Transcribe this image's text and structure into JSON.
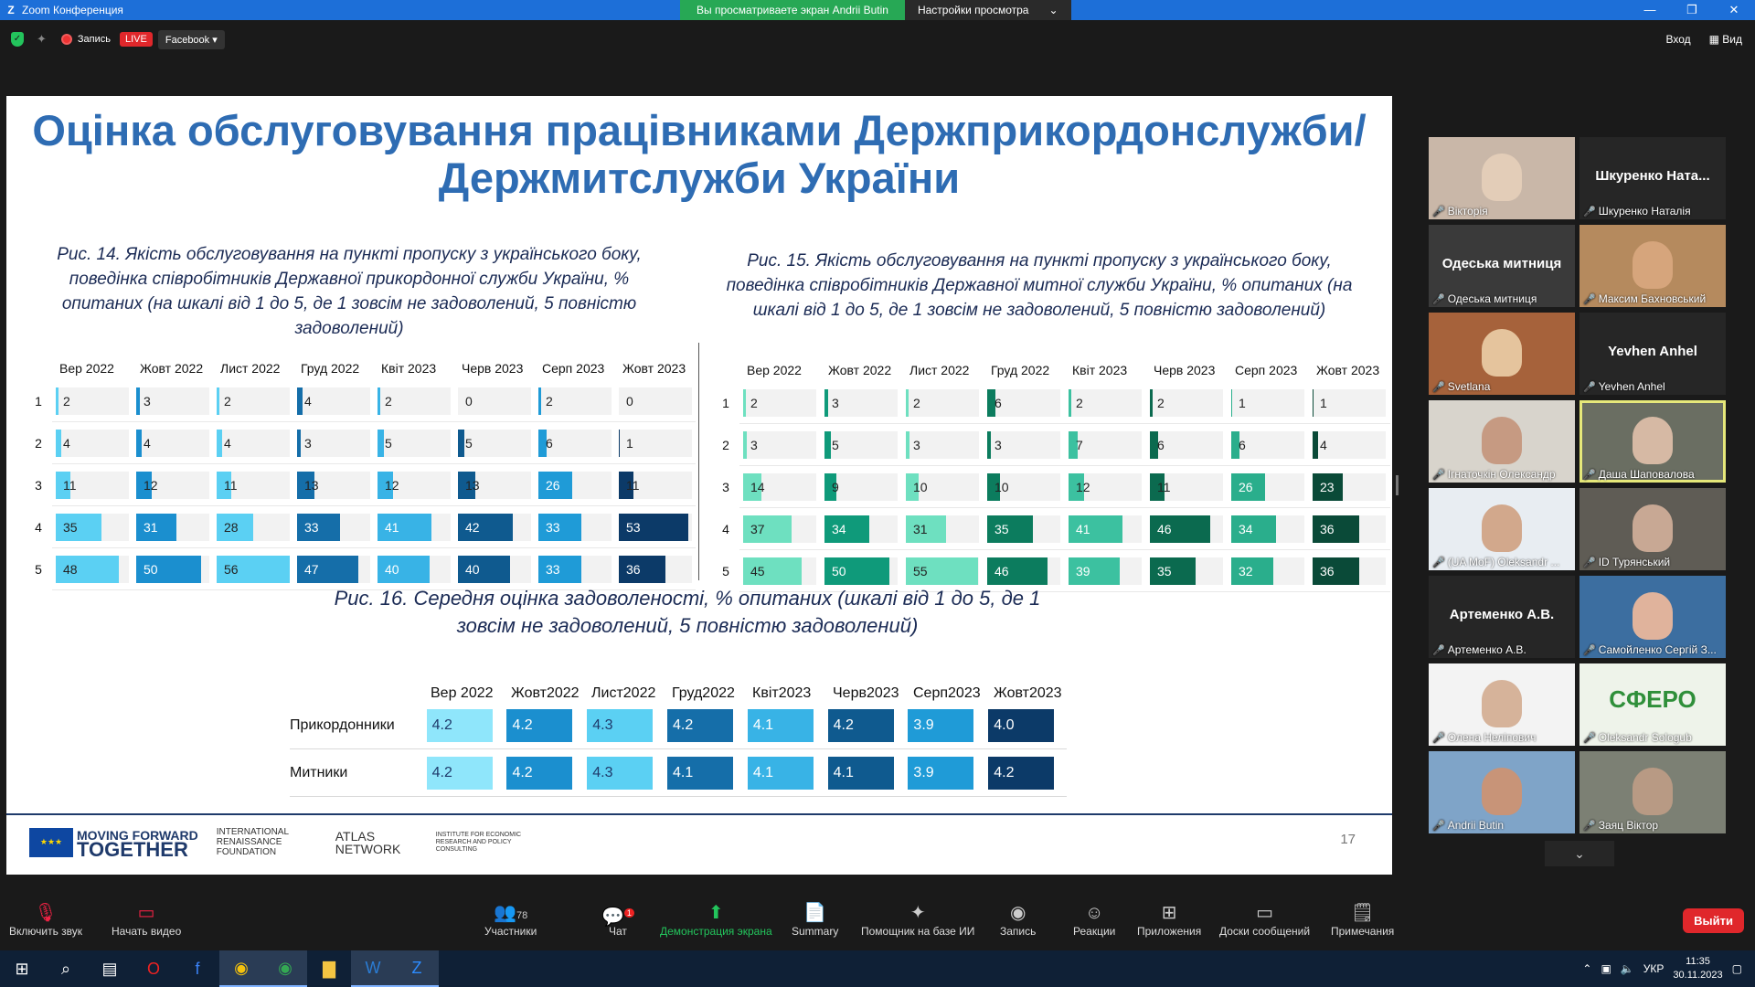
{
  "window": {
    "title": "Zoom Конференция",
    "share_banner": "Вы просматриваете экран Andrii Butin",
    "view_settings": "Настройки просмотра",
    "minimize": "—",
    "maximize": "❐",
    "close": "✕"
  },
  "topbar": {
    "record_label": "Запись",
    "live": "LIVE",
    "platform": "Facebook ▾",
    "enter": "Вход",
    "view": "Вид"
  },
  "slide": {
    "title": "Оцінка обслуговування працівниками Держприкордонслужби/Держмитслужби України",
    "cap14": "Рис. 14. Якість обслуговування на пункті пропуску з українського боку, поведінка співробітників Державної прикордонної служби України, % опитаних (на шкалі від 1 до 5, де 1 зовсім не задоволений, 5 повністю задоволений)",
    "cap15": "Рис. 15. Якість обслуговування на пункті пропуску з українського боку, поведінка співробітників Державної митної служби України, % опитаних (на шкалі від 1 до 5, де 1 зовсім не задоволений, 5 повністю задоволений)",
    "cap16": "Рис. 16. Середня оцінка задоволеності, % опитаних (шкалі від 1 до 5, де 1 зовсім не задоволений, 5 повністю задоволений)",
    "page_number": "17",
    "logos": {
      "eu_line1": "MOVING FORWARD",
      "eu_line2": "TOGETHER",
      "irf": "INTERNATIONAL RENAISSANCE FOUNDATION",
      "atlas": "ATLAS NETWORK",
      "ier": "INSTITUTE FOR ECONOMIC RESEARCH AND POLICY CONSULTING"
    }
  },
  "chart_data": [
    {
      "type": "table",
      "name": "fig14",
      "categories": [
        "Вер 2022",
        "Жовт 2022",
        "Лист 2022",
        "Груд 2022",
        "Квіт 2023",
        "Черв 2023",
        "Серп 2023",
        "Жовт 2023"
      ],
      "rows": [
        "1",
        "2",
        "3",
        "4",
        "5"
      ],
      "values": [
        [
          2,
          3,
          2,
          4,
          2,
          0,
          2,
          0
        ],
        [
          4,
          4,
          4,
          3,
          5,
          5,
          6,
          1
        ],
        [
          11,
          12,
          11,
          13,
          12,
          13,
          26,
          11
        ],
        [
          35,
          31,
          28,
          33,
          41,
          42,
          33,
          53
        ],
        [
          48,
          50,
          56,
          47,
          40,
          40,
          33,
          36
        ]
      ],
      "colors": [
        "#5bd0f3",
        "#1b8fcf",
        "#5bd0f3",
        "#156ea9",
        "#38b3e6",
        "#0f5a8f",
        "#1f9bd7",
        "#0c3a68"
      ]
    },
    {
      "type": "table",
      "name": "fig15",
      "categories": [
        "Вер 2022",
        "Жовт 2022",
        "Лист 2022",
        "Груд 2022",
        "Квіт 2023",
        "Черв 2023",
        "Серп 2023",
        "Жовт 2023"
      ],
      "rows": [
        "1",
        "2",
        "3",
        "4",
        "5"
      ],
      "values": [
        [
          2,
          3,
          2,
          6,
          2,
          2,
          1,
          1
        ],
        [
          3,
          5,
          3,
          3,
          7,
          6,
          6,
          4
        ],
        [
          14,
          9,
          10,
          10,
          12,
          11,
          26,
          23
        ],
        [
          37,
          34,
          31,
          35,
          41,
          46,
          34,
          36
        ],
        [
          45,
          50,
          55,
          46,
          39,
          35,
          32,
          36
        ]
      ],
      "colors": [
        "#6ee0c0",
        "#0f9a7a",
        "#6ee0c0",
        "#0c7c5e",
        "#3cc1a0",
        "#0b6a4f",
        "#2aae8c",
        "#0a4a38"
      ]
    },
    {
      "type": "table",
      "name": "fig16",
      "categories": [
        "Вер 2022",
        "Жовт 2022",
        "Лист 2022",
        "Груд 2022",
        "Квіт 2023",
        "Черв 2023",
        "Серп 2023",
        "Жовт 2023"
      ],
      "rows": [
        "Прикордонники",
        "Митники"
      ],
      "values": [
        [
          "4.2",
          "4.2",
          "4.3",
          "4.2",
          "4.1",
          "4.2",
          "3.9",
          "4.0"
        ],
        [
          "4.2",
          "4.2",
          "4.3",
          "4.1",
          "4.1",
          "4.1",
          "3.9",
          "4.2"
        ]
      ],
      "colors": [
        "#8fe6fb",
        "#1b8fcf",
        "#5bd0f3",
        "#156ea9",
        "#38b3e6",
        "#0f5a8f",
        "#1f9bd7",
        "#0c3a68"
      ]
    }
  ],
  "fig16_headers": [
    [
      "Вер 2022",
      ""
    ],
    [
      "Жовт",
      "2022"
    ],
    [
      "Лист",
      "2022"
    ],
    [
      "Груд",
      "2022"
    ],
    [
      "Квіт",
      "2023"
    ],
    [
      "Черв",
      "2023"
    ],
    [
      "Серп",
      "2023"
    ],
    [
      "Жовт",
      "2023"
    ]
  ],
  "participants": [
    {
      "name": "Вікторія",
      "bg": "#c9b7a8",
      "face": "#e3cdb8",
      "big": ""
    },
    {
      "name": "Шкуренко Наталія",
      "bg": "#262626",
      "face": "",
      "big": "Шкуренко Ната..."
    },
    {
      "name": "Одеська митниця",
      "bg": "#3a3a3a",
      "face": "",
      "big": "Одеська митниця"
    },
    {
      "name": "Максим Бахновський",
      "bg": "#b58a5e",
      "face": "#d6a57c",
      "big": ""
    },
    {
      "name": "Svetlana",
      "bg": "#a6623b",
      "face": "#e5c49d",
      "big": ""
    },
    {
      "name": "Yevhen Anhel",
      "bg": "#262626",
      "face": "",
      "big": "Yevhen Anhel"
    },
    {
      "name": "Ігнаточкін Олександр",
      "bg": "#d8d4cc",
      "face": "#c69a82",
      "big": ""
    },
    {
      "name": "Даша Шаповалова",
      "bg": "#6a6e62",
      "face": "#d6b9a4",
      "big": ""
    },
    {
      "name": "(UA MoF) Oleksandr ...",
      "bg": "#e8edf2",
      "face": "#d2a88c",
      "big": ""
    },
    {
      "name": "ID Турянський",
      "bg": "#5f5c55",
      "face": "#c8a894",
      "big": ""
    },
    {
      "name": "Артеменко А.В.",
      "bg": "#262626",
      "face": "",
      "big": "Артеменко А.В."
    },
    {
      "name": "Самойленко Сергій З...",
      "bg": "#3c6ea0",
      "face": "#e0b39c",
      "big": ""
    },
    {
      "name": "Олена Неліпович",
      "bg": "#f3f3f3",
      "face": "#d6b39a",
      "big": ""
    },
    {
      "name": "Oleksandr Sologub",
      "bg": "#eef3ea",
      "face": "",
      "big": "СФЕРО"
    },
    {
      "name": "Andrii Butin",
      "bg": "#7fa4c8",
      "face": "#c89478",
      "big": ""
    },
    {
      "name": "Заяц Віктор",
      "bg": "#7c8074",
      "face": "#b89a84",
      "big": ""
    }
  ],
  "toolbar": {
    "audio": "Включить звук",
    "video": "Начать видео",
    "participants": "Участники",
    "participants_count": "78",
    "chat": "Чат",
    "chat_badge": "1",
    "share": "Демонстрация экрана",
    "summary": "Summary",
    "ai": "Помощник на базе ИИ",
    "record": "Запись",
    "reactions": "Реакции",
    "apps": "Приложения",
    "whiteboards": "Доски сообщений",
    "notes": "Примечания",
    "leave": "Выйти"
  },
  "taskbar": {
    "time": "11:35",
    "date": "30.11.2023",
    "lang": "УКР"
  }
}
